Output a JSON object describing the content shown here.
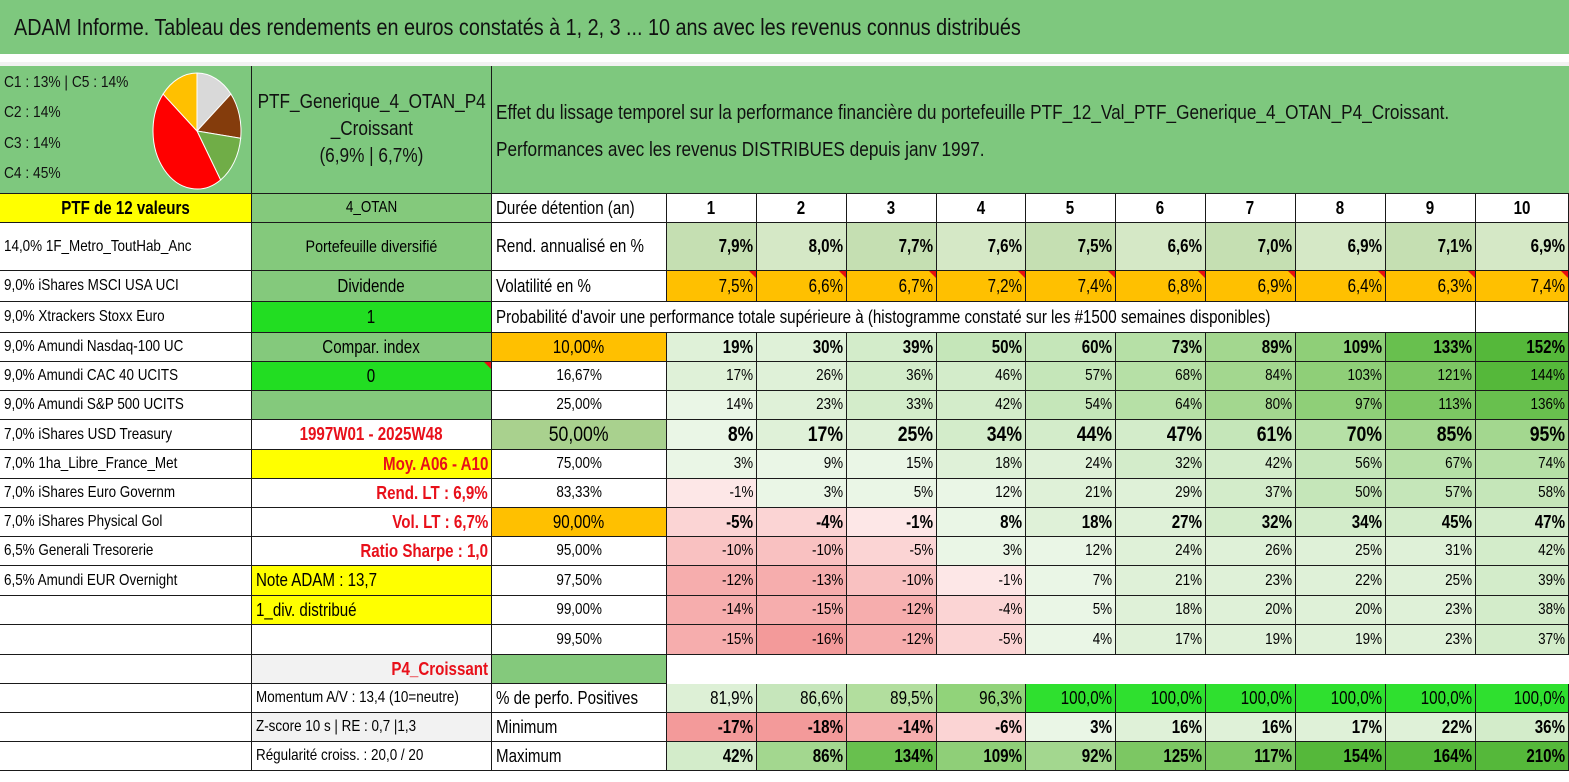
{
  "title": "ADAM Informe. Tableau des rendements en euros constatés à 1, 2, 3 ... 10 ans avec les revenus connus distribués",
  "pie": {
    "legend": [
      "C1 : 13% | C5 : 14%",
      "C2 : 14%",
      "C3 : 14%",
      "C4 : 45%"
    ],
    "slices": [
      {
        "label": "C5",
        "value": 14,
        "color": "#d9d9d9"
      },
      {
        "label": "C1",
        "value": 13,
        "color": "#843c0c"
      },
      {
        "label": "C2",
        "value": 14,
        "color": "#70ad47"
      },
      {
        "label": "C4",
        "value": 45,
        "color": "#ff0000"
      },
      {
        "label": "C3",
        "value": 14,
        "color": "#ffc000"
      }
    ]
  },
  "portfolio_header": {
    "line1": "PTF_Generique_4_OTAN_P4",
    "line2": "_Croissant",
    "line3": "(6,9% | 6,7%)"
  },
  "description": {
    "line1": "Effet du lissage temporel sur la performance financière du portefeuille PTF_12_Val_PTF_Generique_4_OTAN_P4_Croissant.",
    "line2": "Performances avec les revenus DISTRIBUES depuis janv 1997."
  },
  "holdings_header": "PTF de 12 valeurs",
  "holdings": [
    "14,0% 1F_Metro_ToutHab_Anc",
    "9,0% iShares MSCI USA UCI",
    "9,0% Xtrackers Stoxx Euro",
    "9,0% Amundi Nasdaq-100 UC",
    "9,0% Amundi CAC 40 UCITS",
    "9,0% Amundi S&P 500 UCITS",
    "7,0% iShares USD Treasury",
    "7,0% 1ha_Libre_France_Met",
    "7,0% iShares Euro Governm",
    "7,0% iShares Physical Gol",
    "6,5% Generali Tresorerie",
    "6,5% Amundi EUR Overnight"
  ],
  "info": {
    "otan": "4_OTAN",
    "diversified": "Portefeuille diversifié",
    "dividende": "Dividende",
    "one": "1",
    "compar_index": "Compar. index",
    "zero": "0",
    "period": "1997W01 - 2025W48",
    "moy": "Moy. A06 - A10",
    "rend_lt": "Rend. LT : 6,9%",
    "vol_lt": "Vol. LT : 6,7%",
    "sharpe": "Ratio Sharpe : 1,0",
    "note": "Note ADAM : 13,7",
    "div": "1_div. distribué",
    "p4": "P4_Croissant",
    "momentum": "Momentum A/V : 13,4 (10=neutre)",
    "zscore": "Z-score 10 s | RE : 0,7 |1,3",
    "regularite": "Régularité croiss. : 20,0 / 20"
  },
  "table": {
    "duration_label": "Durée détention (an)",
    "years": [
      "1",
      "2",
      "3",
      "4",
      "5",
      "6",
      "7",
      "8",
      "9",
      "10"
    ],
    "rend_label": "Rend. annualisé en %",
    "rend": [
      "7,9%",
      "8,0%",
      "7,7%",
      "7,6%",
      "7,5%",
      "6,6%",
      "7,0%",
      "6,9%",
      "7,1%",
      "6,9%"
    ],
    "vol_label": "Volatilité en %",
    "vol": [
      "7,5%",
      "6,6%",
      "6,7%",
      "7,2%",
      "7,4%",
      "6,8%",
      "6,9%",
      "6,4%",
      "6,3%",
      "7,4%"
    ],
    "prob_title": "Probabilité d'avoir une performance totale supérieure à (histogramme constaté sur les #1500 semaines disponibles)",
    "prob_rows": [
      {
        "p": "10,00%",
        "v": [
          "19%",
          "30%",
          "39%",
          "50%",
          "60%",
          "73%",
          "89%",
          "109%",
          "133%",
          "152%"
        ]
      },
      {
        "p": "16,67%",
        "v": [
          "17%",
          "26%",
          "36%",
          "46%",
          "57%",
          "68%",
          "84%",
          "103%",
          "121%",
          "144%"
        ]
      },
      {
        "p": "25,00%",
        "v": [
          "14%",
          "23%",
          "33%",
          "42%",
          "54%",
          "64%",
          "80%",
          "97%",
          "113%",
          "136%"
        ]
      },
      {
        "p": "50,00%",
        "v": [
          "8%",
          "17%",
          "25%",
          "34%",
          "44%",
          "47%",
          "61%",
          "70%",
          "85%",
          "95%"
        ]
      },
      {
        "p": "75,00%",
        "v": [
          "3%",
          "9%",
          "15%",
          "18%",
          "24%",
          "32%",
          "42%",
          "56%",
          "67%",
          "74%"
        ]
      },
      {
        "p": "83,33%",
        "v": [
          "-1%",
          "3%",
          "5%",
          "12%",
          "21%",
          "29%",
          "37%",
          "50%",
          "57%",
          "58%"
        ]
      },
      {
        "p": "90,00%",
        "v": [
          "-5%",
          "-4%",
          "-1%",
          "8%",
          "18%",
          "27%",
          "32%",
          "34%",
          "45%",
          "47%"
        ]
      },
      {
        "p": "95,00%",
        "v": [
          "-10%",
          "-10%",
          "-5%",
          "3%",
          "12%",
          "24%",
          "26%",
          "25%",
          "31%",
          "42%"
        ]
      },
      {
        "p": "97,50%",
        "v": [
          "-12%",
          "-13%",
          "-10%",
          "-1%",
          "7%",
          "21%",
          "23%",
          "22%",
          "25%",
          "39%"
        ]
      },
      {
        "p": "99,00%",
        "v": [
          "-14%",
          "-15%",
          "-12%",
          "-4%",
          "5%",
          "18%",
          "20%",
          "20%",
          "23%",
          "38%"
        ]
      },
      {
        "p": "99,50%",
        "v": [
          "-15%",
          "-16%",
          "-12%",
          "-5%",
          "4%",
          "17%",
          "19%",
          "19%",
          "23%",
          "37%"
        ]
      }
    ],
    "pos_label": "% de perfo. Positives",
    "pos": [
      "81,9%",
      "86,6%",
      "89,5%",
      "96,3%",
      "100,0%",
      "100,0%",
      "100,0%",
      "100,0%",
      "100,0%",
      "100,0%"
    ],
    "min_label": "Minimum",
    "min": [
      "-17%",
      "-18%",
      "-14%",
      "-6%",
      "3%",
      "16%",
      "16%",
      "17%",
      "22%",
      "36%"
    ],
    "max_label": "Maximum",
    "max": [
      "42%",
      "86%",
      "134%",
      "109%",
      "92%",
      "125%",
      "117%",
      "154%",
      "164%",
      "210%"
    ]
  }
}
